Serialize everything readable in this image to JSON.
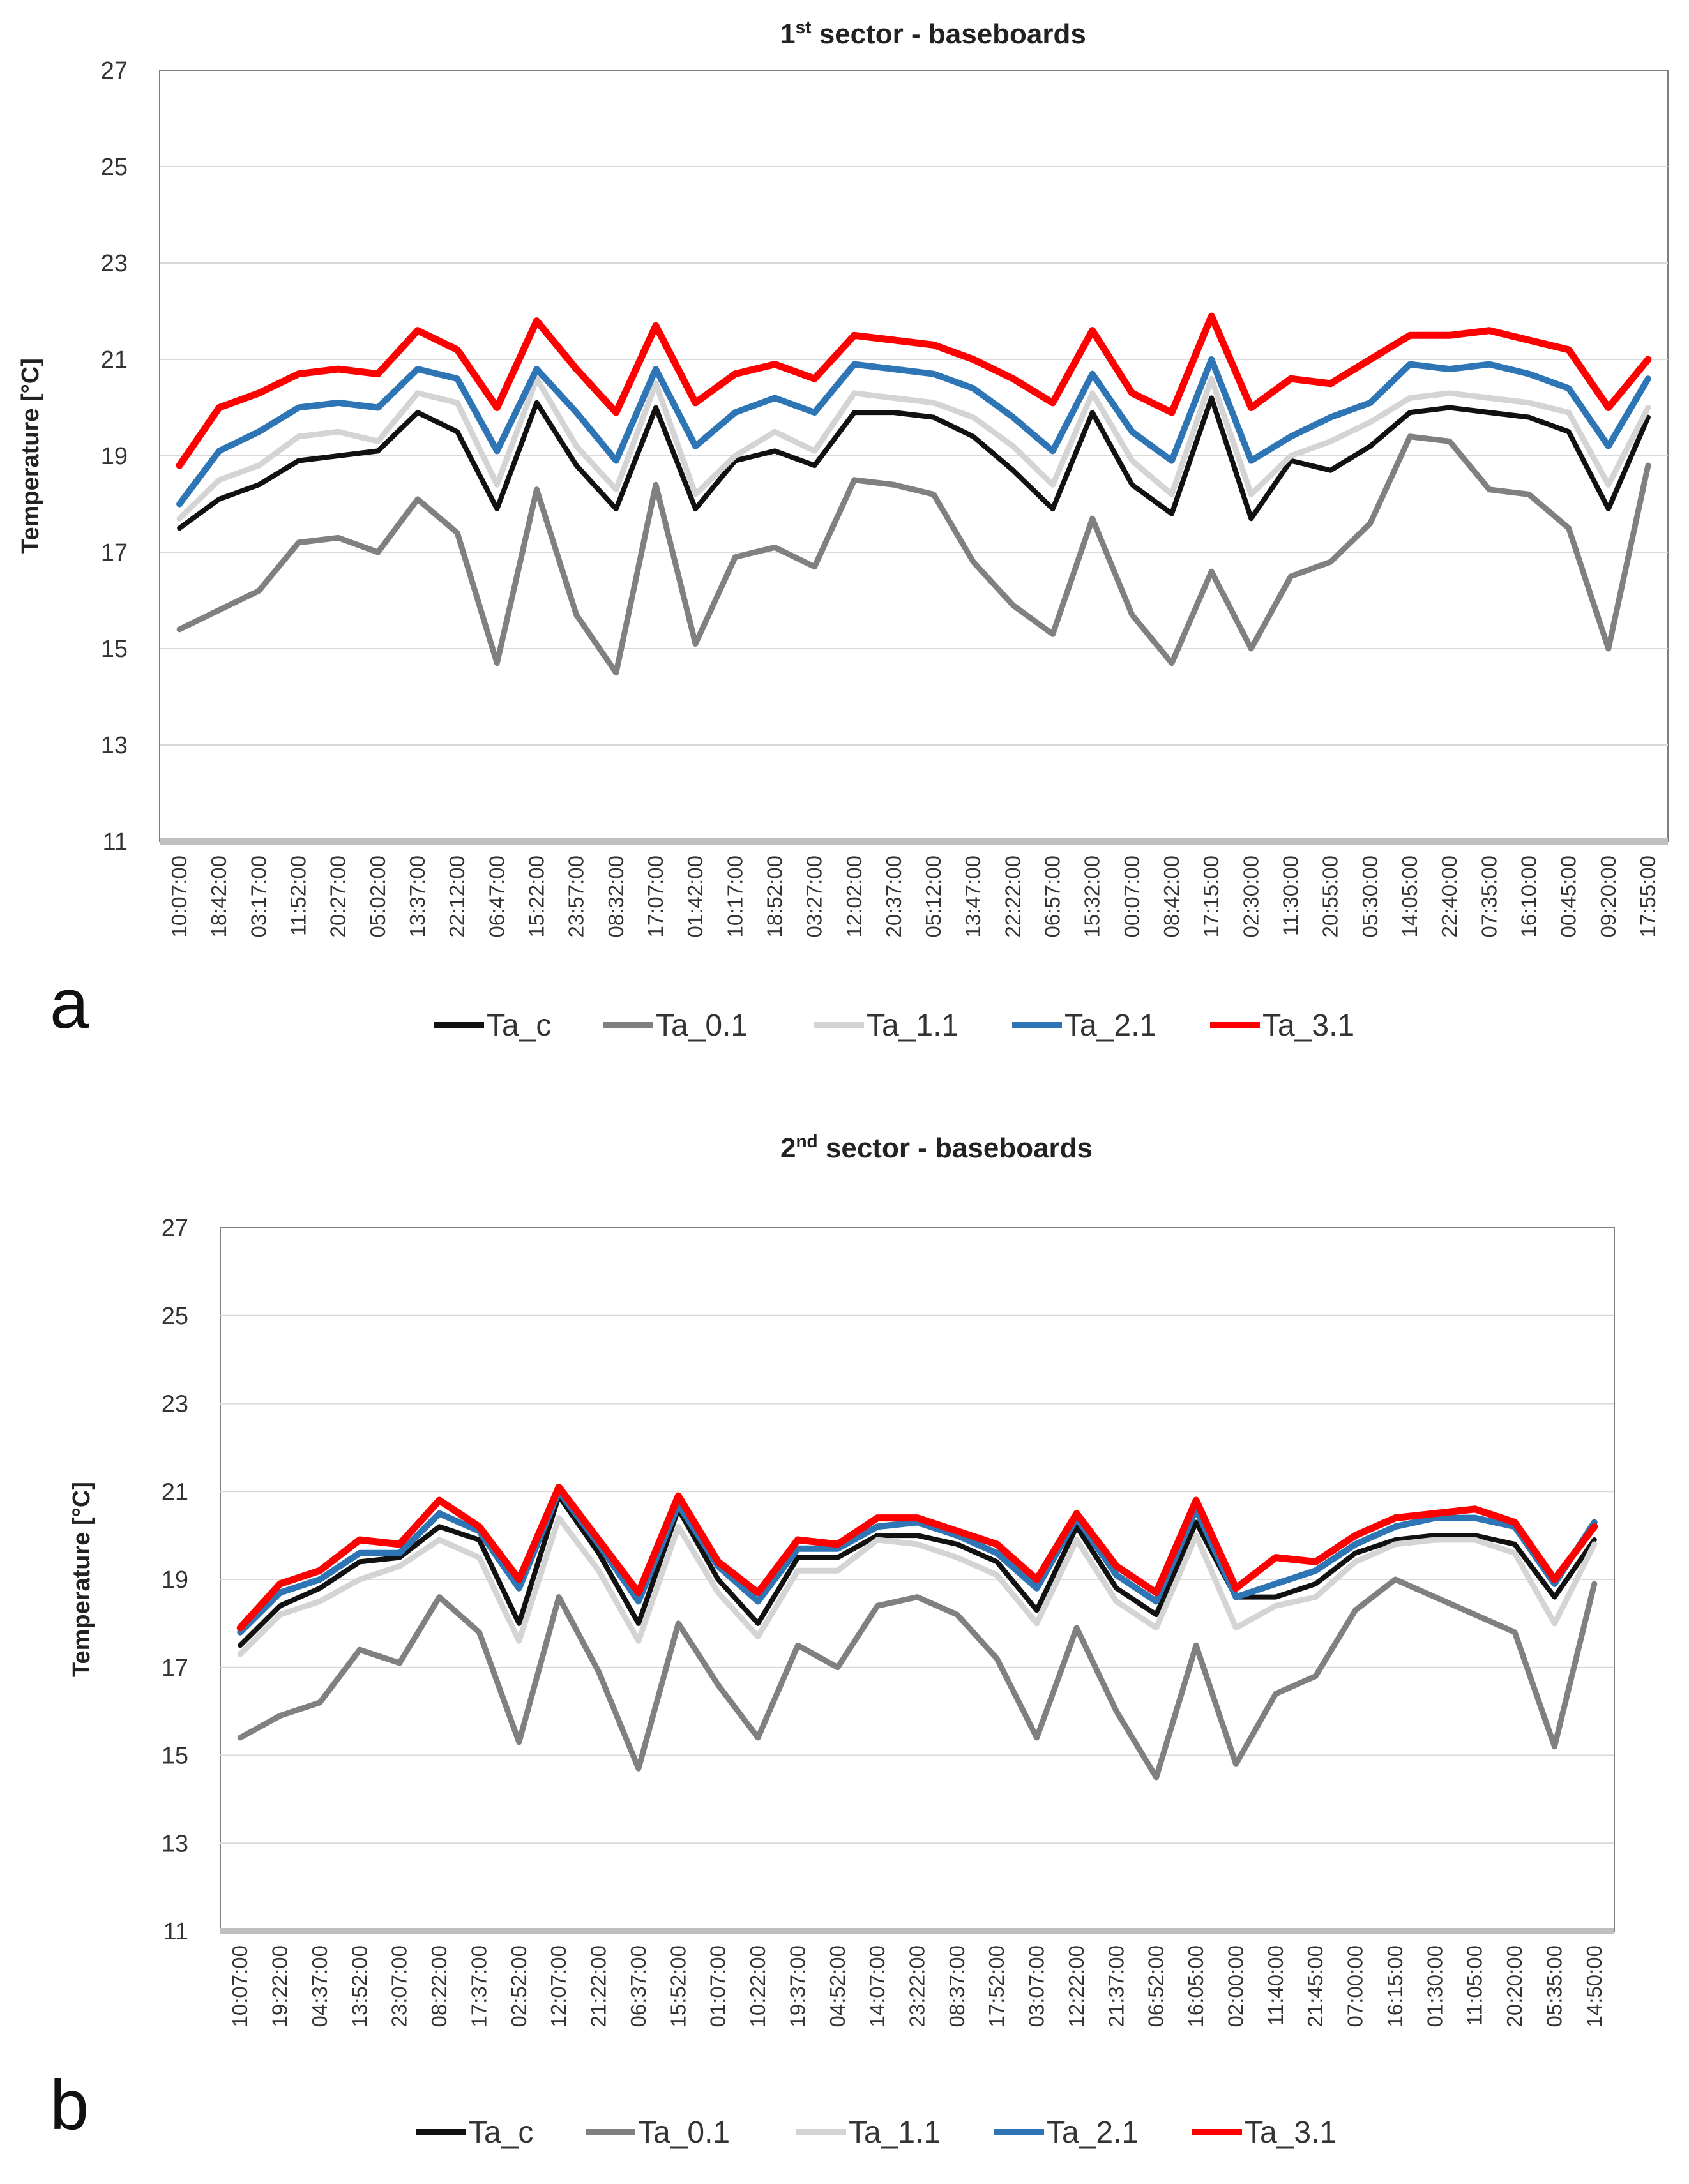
{
  "chart_data": [
    {
      "type": "line",
      "panel_label": "a",
      "title_prefix": "1",
      "title_super": "st",
      "title_rest": " sector - baseboards",
      "title": "1st sector - baseboards",
      "xlabel": "",
      "ylabel": "Temperature [°C]",
      "ylim": [
        11,
        27
      ],
      "yticks": [
        11,
        13,
        15,
        17,
        19,
        21,
        23,
        25,
        27
      ],
      "grid": true,
      "legend_position": "bottom",
      "categories": [
        "10:07:00",
        "18:42:00",
        "03:17:00",
        "11:52:00",
        "20:27:00",
        "05:02:00",
        "13:37:00",
        "22:12:00",
        "06:47:00",
        "15:22:00",
        "23:57:00",
        "08:32:00",
        "17:07:00",
        "01:42:00",
        "10:17:00",
        "18:52:00",
        "03:27:00",
        "12:02:00",
        "20:37:00",
        "05:12:00",
        "13:47:00",
        "22:22:00",
        "06:57:00",
        "15:32:00",
        "00:07:00",
        "08:42:00",
        "17:15:00",
        "02:30:00",
        "11:30:00",
        "20:55:00",
        "05:30:00",
        "14:05:00",
        "22:40:00",
        "07:35:00",
        "16:10:00",
        "00:45:00",
        "09:20:00",
        "17:55:00"
      ],
      "series": [
        {
          "name": "Ta_c",
          "color": "#111111",
          "values": [
            17.5,
            18.1,
            18.4,
            18.9,
            19.0,
            19.1,
            19.9,
            19.5,
            17.9,
            20.1,
            18.8,
            17.9,
            20.0,
            17.9,
            18.9,
            19.1,
            18.8,
            19.9,
            19.9,
            19.8,
            19.4,
            18.7,
            17.9,
            19.9,
            18.4,
            17.8,
            20.2,
            17.7,
            18.9,
            18.7,
            19.2,
            19.9,
            20.0,
            19.9,
            19.8,
            19.5,
            17.9,
            19.8
          ]
        },
        {
          "name": "Ta_0.1",
          "color": "#808080",
          "values": [
            15.4,
            15.8,
            16.2,
            17.2,
            17.3,
            17.0,
            18.1,
            17.4,
            14.7,
            18.3,
            15.7,
            14.5,
            18.4,
            15.1,
            16.9,
            17.1,
            16.7,
            18.5,
            18.4,
            18.2,
            16.8,
            15.9,
            15.3,
            17.7,
            15.7,
            14.7,
            16.6,
            15.0,
            16.5,
            16.8,
            17.6,
            19.4,
            19.3,
            18.3,
            18.2,
            17.5,
            15.0,
            18.8
          ]
        },
        {
          "name": "Ta_1.1",
          "color": "#d4d4d4",
          "values": [
            17.7,
            18.5,
            18.8,
            19.4,
            19.5,
            19.3,
            20.3,
            20.1,
            18.4,
            20.6,
            19.2,
            18.3,
            20.5,
            18.2,
            19.0,
            19.5,
            19.1,
            20.3,
            20.2,
            20.1,
            19.8,
            19.2,
            18.4,
            20.3,
            18.9,
            18.2,
            20.6,
            18.2,
            19.0,
            19.3,
            19.7,
            20.2,
            20.3,
            20.2,
            20.1,
            19.9,
            18.4,
            20.0
          ]
        },
        {
          "name": "Ta_2.1",
          "color": "#2e75b6",
          "values": [
            18.0,
            19.1,
            19.5,
            20.0,
            20.1,
            20.0,
            20.8,
            20.6,
            19.1,
            20.8,
            19.9,
            18.9,
            20.8,
            19.2,
            19.9,
            20.2,
            19.9,
            20.9,
            20.8,
            20.7,
            20.4,
            19.8,
            19.1,
            20.7,
            19.5,
            18.9,
            21.0,
            18.9,
            19.4,
            19.8,
            20.1,
            20.9,
            20.8,
            20.9,
            20.7,
            20.4,
            19.2,
            20.6
          ]
        },
        {
          "name": "Ta_3.1",
          "color": "#ff0000",
          "values": [
            18.8,
            20.0,
            20.3,
            20.7,
            20.8,
            20.7,
            21.6,
            21.2,
            20.0,
            21.8,
            20.8,
            19.9,
            21.7,
            20.1,
            20.7,
            20.9,
            20.6,
            21.5,
            21.4,
            21.3,
            21.0,
            20.6,
            20.1,
            21.6,
            20.3,
            19.9,
            21.9,
            20.0,
            20.6,
            20.5,
            21.0,
            21.5,
            21.5,
            21.6,
            21.4,
            21.2,
            20.0,
            21.0
          ]
        }
      ]
    },
    {
      "type": "line",
      "panel_label": "b",
      "title_prefix": "2",
      "title_super": "nd",
      "title_rest": " sector - baseboards",
      "title": "2nd sector - baseboards",
      "xlabel": "",
      "ylabel": "Temperature [°C]",
      "ylim": [
        11,
        27
      ],
      "yticks": [
        11,
        13,
        15,
        17,
        19,
        21,
        23,
        25,
        27
      ],
      "grid": true,
      "legend_position": "bottom",
      "categories": [
        "10:07:00",
        "19:22:00",
        "04:37:00",
        "13:52:00",
        "23:07:00",
        "08:22:00",
        "17:37:00",
        "02:52:00",
        "12:07:00",
        "21:22:00",
        "06:37:00",
        "15:52:00",
        "01:07:00",
        "10:22:00",
        "19:37:00",
        "04:52:00",
        "14:07:00",
        "23:22:00",
        "08:37:00",
        "17:52:00",
        "03:07:00",
        "12:22:00",
        "21:37:00",
        "06:52:00",
        "16:05:00",
        "02:00:00",
        "11:40:00",
        "21:45:00",
        "07:00:00",
        "16:15:00",
        "01:30:00",
        "11:05:00",
        "20:20:00",
        "05:35:00",
        "14:50:00"
      ],
      "series": [
        {
          "name": "Ta_c",
          "color": "#111111",
          "values": [
            17.5,
            18.4,
            18.8,
            19.4,
            19.5,
            20.2,
            19.9,
            18.0,
            20.9,
            19.6,
            18.0,
            20.6,
            19.0,
            18.0,
            19.5,
            19.5,
            20.0,
            20.0,
            19.8,
            19.4,
            18.3,
            20.2,
            18.8,
            18.2,
            20.3,
            18.6,
            18.6,
            18.9,
            19.6,
            19.9,
            20.0,
            20.0,
            19.8,
            18.6,
            19.9
          ]
        },
        {
          "name": "Ta_0.1",
          "color": "#808080",
          "values": [
            15.4,
            15.9,
            16.2,
            17.4,
            17.1,
            18.6,
            17.8,
            15.3,
            18.6,
            16.9,
            14.7,
            18.0,
            16.6,
            15.4,
            17.5,
            17.0,
            18.4,
            18.6,
            18.2,
            17.2,
            15.4,
            17.9,
            16.0,
            14.5,
            17.5,
            14.8,
            16.4,
            16.8,
            18.3,
            19.0,
            18.6,
            18.2,
            17.8,
            15.2,
            18.9
          ]
        },
        {
          "name": "Ta_1.1",
          "color": "#d4d4d4",
          "values": [
            17.3,
            18.2,
            18.5,
            19.0,
            19.3,
            19.9,
            19.5,
            17.6,
            20.4,
            19.2,
            17.6,
            20.2,
            18.7,
            17.7,
            19.2,
            19.2,
            19.9,
            19.8,
            19.5,
            19.1,
            18.0,
            19.9,
            18.5,
            17.9,
            20.0,
            17.9,
            18.4,
            18.6,
            19.4,
            19.8,
            19.9,
            19.9,
            19.6,
            18.0,
            19.8
          ]
        },
        {
          "name": "Ta_2.1",
          "color": "#2e75b6",
          "values": [
            17.8,
            18.7,
            19.0,
            19.6,
            19.6,
            20.5,
            20.1,
            18.8,
            21.0,
            19.8,
            18.5,
            20.7,
            19.3,
            18.5,
            19.7,
            19.7,
            20.2,
            20.3,
            20.0,
            19.6,
            18.8,
            20.4,
            19.1,
            18.5,
            20.6,
            18.6,
            18.9,
            19.2,
            19.8,
            20.2,
            20.4,
            20.4,
            20.2,
            18.9,
            20.3
          ]
        },
        {
          "name": "Ta_3.1",
          "color": "#ff0000",
          "values": [
            17.9,
            18.9,
            19.2,
            19.9,
            19.8,
            20.8,
            20.2,
            19.0,
            21.1,
            19.9,
            18.7,
            20.9,
            19.4,
            18.7,
            19.9,
            19.8,
            20.4,
            20.4,
            20.1,
            19.8,
            19.0,
            20.5,
            19.3,
            18.7,
            20.8,
            18.8,
            19.5,
            19.4,
            20.0,
            20.4,
            20.5,
            20.6,
            20.3,
            19.0,
            20.2
          ]
        }
      ]
    }
  ]
}
